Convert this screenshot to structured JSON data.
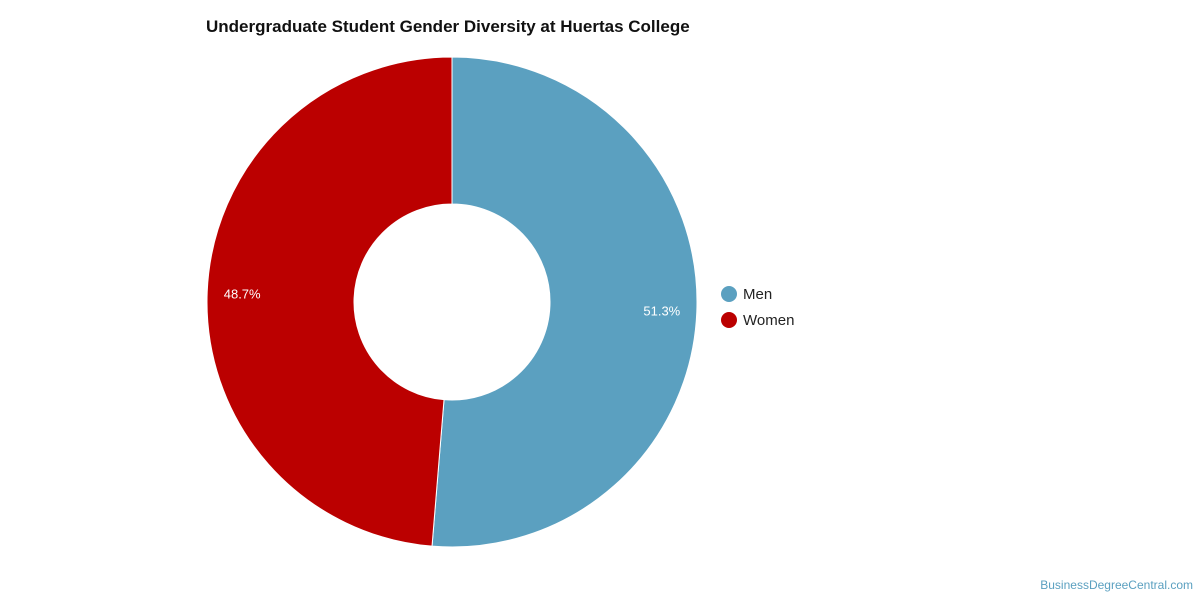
{
  "chart_data": {
    "type": "pie",
    "donut": true,
    "title": "Undergraduate Student Gender Diversity at Huertas College",
    "slices": [
      {
        "label": "Men",
        "value": 51.3,
        "display": "51.3%",
        "color": "#5ba0c0"
      },
      {
        "label": "Women",
        "value": 48.7,
        "display": "48.7%",
        "color": "#bb0000"
      }
    ],
    "legend_position": "right"
  },
  "footer": {
    "source": "BusinessDegreeCentral.com"
  }
}
